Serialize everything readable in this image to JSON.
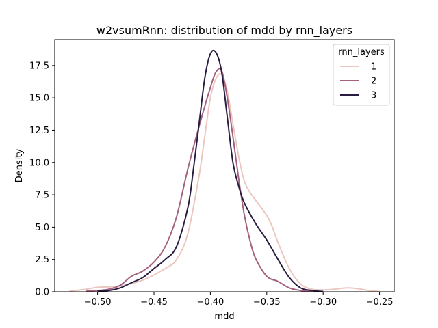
{
  "chart_data": {
    "type": "line",
    "title": "w2vsumRnn: distribution of mdd by rnn_layers",
    "xlabel": "mdd",
    "ylabel": "Density",
    "xlim": [
      -0.538,
      -0.237
    ],
    "ylim": [
      0,
      19.5
    ],
    "xticks": [
      -0.5,
      -0.45,
      -0.4,
      -0.35,
      -0.3,
      -0.25
    ],
    "xtick_labels": [
      "−0.50",
      "−0.45",
      "−0.40",
      "−0.35",
      "−0.30",
      "−0.25"
    ],
    "yticks": [
      0.0,
      2.5,
      5.0,
      7.5,
      10.0,
      12.5,
      15.0,
      17.5
    ],
    "ytick_labels": [
      "0.0",
      "2.5",
      "5.0",
      "7.5",
      "10.0",
      "12.5",
      "15.0",
      "17.5"
    ],
    "grid": false,
    "legend": {
      "title": "rnn_layers",
      "placement": "top-right"
    },
    "series": [
      {
        "name": "1",
        "color": "#ebc7c0",
        "x": [
          -0.525,
          -0.51,
          -0.5,
          -0.48,
          -0.46,
          -0.44,
          -0.43,
          -0.42,
          -0.41,
          -0.405,
          -0.4,
          -0.395,
          -0.39,
          -0.385,
          -0.38,
          -0.375,
          -0.37,
          -0.365,
          -0.36,
          -0.35,
          -0.345,
          -0.34,
          -0.33,
          -0.32,
          -0.31,
          -0.3,
          -0.29,
          -0.28,
          -0.27,
          -0.26,
          -0.25
        ],
        "values": [
          0.05,
          0.2,
          0.35,
          0.45,
          0.9,
          1.8,
          2.5,
          4.5,
          9.0,
          12.0,
          15.0,
          16.5,
          16.8,
          15.5,
          13.0,
          10.5,
          8.6,
          7.7,
          7.1,
          5.9,
          5.0,
          3.8,
          1.8,
          0.6,
          0.2,
          0.15,
          0.2,
          0.3,
          0.25,
          0.1,
          0.02
        ]
      },
      {
        "name": "2",
        "color": "#a3617f",
        "x": [
          -0.51,
          -0.5,
          -0.49,
          -0.48,
          -0.47,
          -0.46,
          -0.45,
          -0.44,
          -0.43,
          -0.42,
          -0.41,
          -0.4,
          -0.395,
          -0.39,
          -0.385,
          -0.38,
          -0.375,
          -0.37,
          -0.365,
          -0.36,
          -0.35,
          -0.34,
          -0.33,
          -0.32,
          -0.31
        ],
        "values": [
          0.05,
          0.1,
          0.2,
          0.5,
          1.2,
          1.6,
          2.3,
          3.5,
          5.8,
          9.5,
          12.8,
          15.8,
          17.0,
          17.1,
          15.0,
          12.0,
          8.8,
          6.0,
          4.0,
          2.6,
          1.2,
          0.8,
          0.3,
          0.1,
          0.02
        ]
      },
      {
        "name": "3",
        "color": "#2a1c40",
        "x": [
          -0.5,
          -0.49,
          -0.48,
          -0.47,
          -0.46,
          -0.45,
          -0.44,
          -0.43,
          -0.42,
          -0.415,
          -0.41,
          -0.405,
          -0.4,
          -0.395,
          -0.39,
          -0.385,
          -0.38,
          -0.375,
          -0.37,
          -0.36,
          -0.35,
          -0.34,
          -0.33,
          -0.32,
          -0.31,
          -0.3
        ],
        "values": [
          0.05,
          0.1,
          0.3,
          0.7,
          1.1,
          1.8,
          2.5,
          3.5,
          6.5,
          9.5,
          13.0,
          16.5,
          18.4,
          18.5,
          17.0,
          13.5,
          10.0,
          8.2,
          6.9,
          5.3,
          4.0,
          2.5,
          1.1,
          0.3,
          0.1,
          0.02
        ]
      }
    ]
  }
}
